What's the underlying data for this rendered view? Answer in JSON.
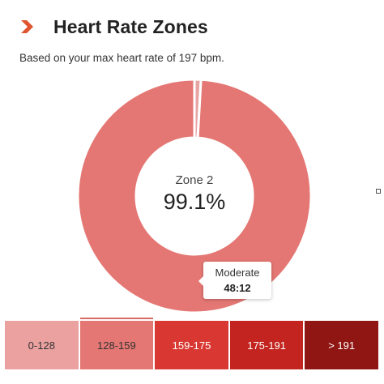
{
  "header": {
    "icon": "chevron-right-icon",
    "title": "Heart Rate Zones"
  },
  "subtitle": "Based on your max heart rate of 197 bpm.",
  "donut": {
    "center_label": "Zone 2",
    "center_value": "99.1%",
    "segments": [
      {
        "zone": "Zone 1",
        "percent": 0.9,
        "color": "#e8a4a3"
      },
      {
        "zone": "Zone 2",
        "percent": 99.1,
        "color": "#e47773"
      }
    ]
  },
  "tooltip": {
    "label": "Moderate",
    "value": "48:12"
  },
  "zones": [
    {
      "label": "0-128",
      "color": "#eaa1a0",
      "text_color": "#333333",
      "active": false
    },
    {
      "label": "128-159",
      "color": "#e47773",
      "text_color": "#333333",
      "active": true
    },
    {
      "label": "159-175",
      "color": "#d93832",
      "text_color": "#ffffff",
      "active": false
    },
    {
      "label": "175-191",
      "color": "#c3241f",
      "text_color": "#ffffff",
      "active": false
    },
    {
      "label": "> 191",
      "color": "#8f1612",
      "text_color": "#ffffff",
      "active": false
    }
  ],
  "colors": {
    "accent": "#e0552f",
    "zone2": "#e47773"
  }
}
